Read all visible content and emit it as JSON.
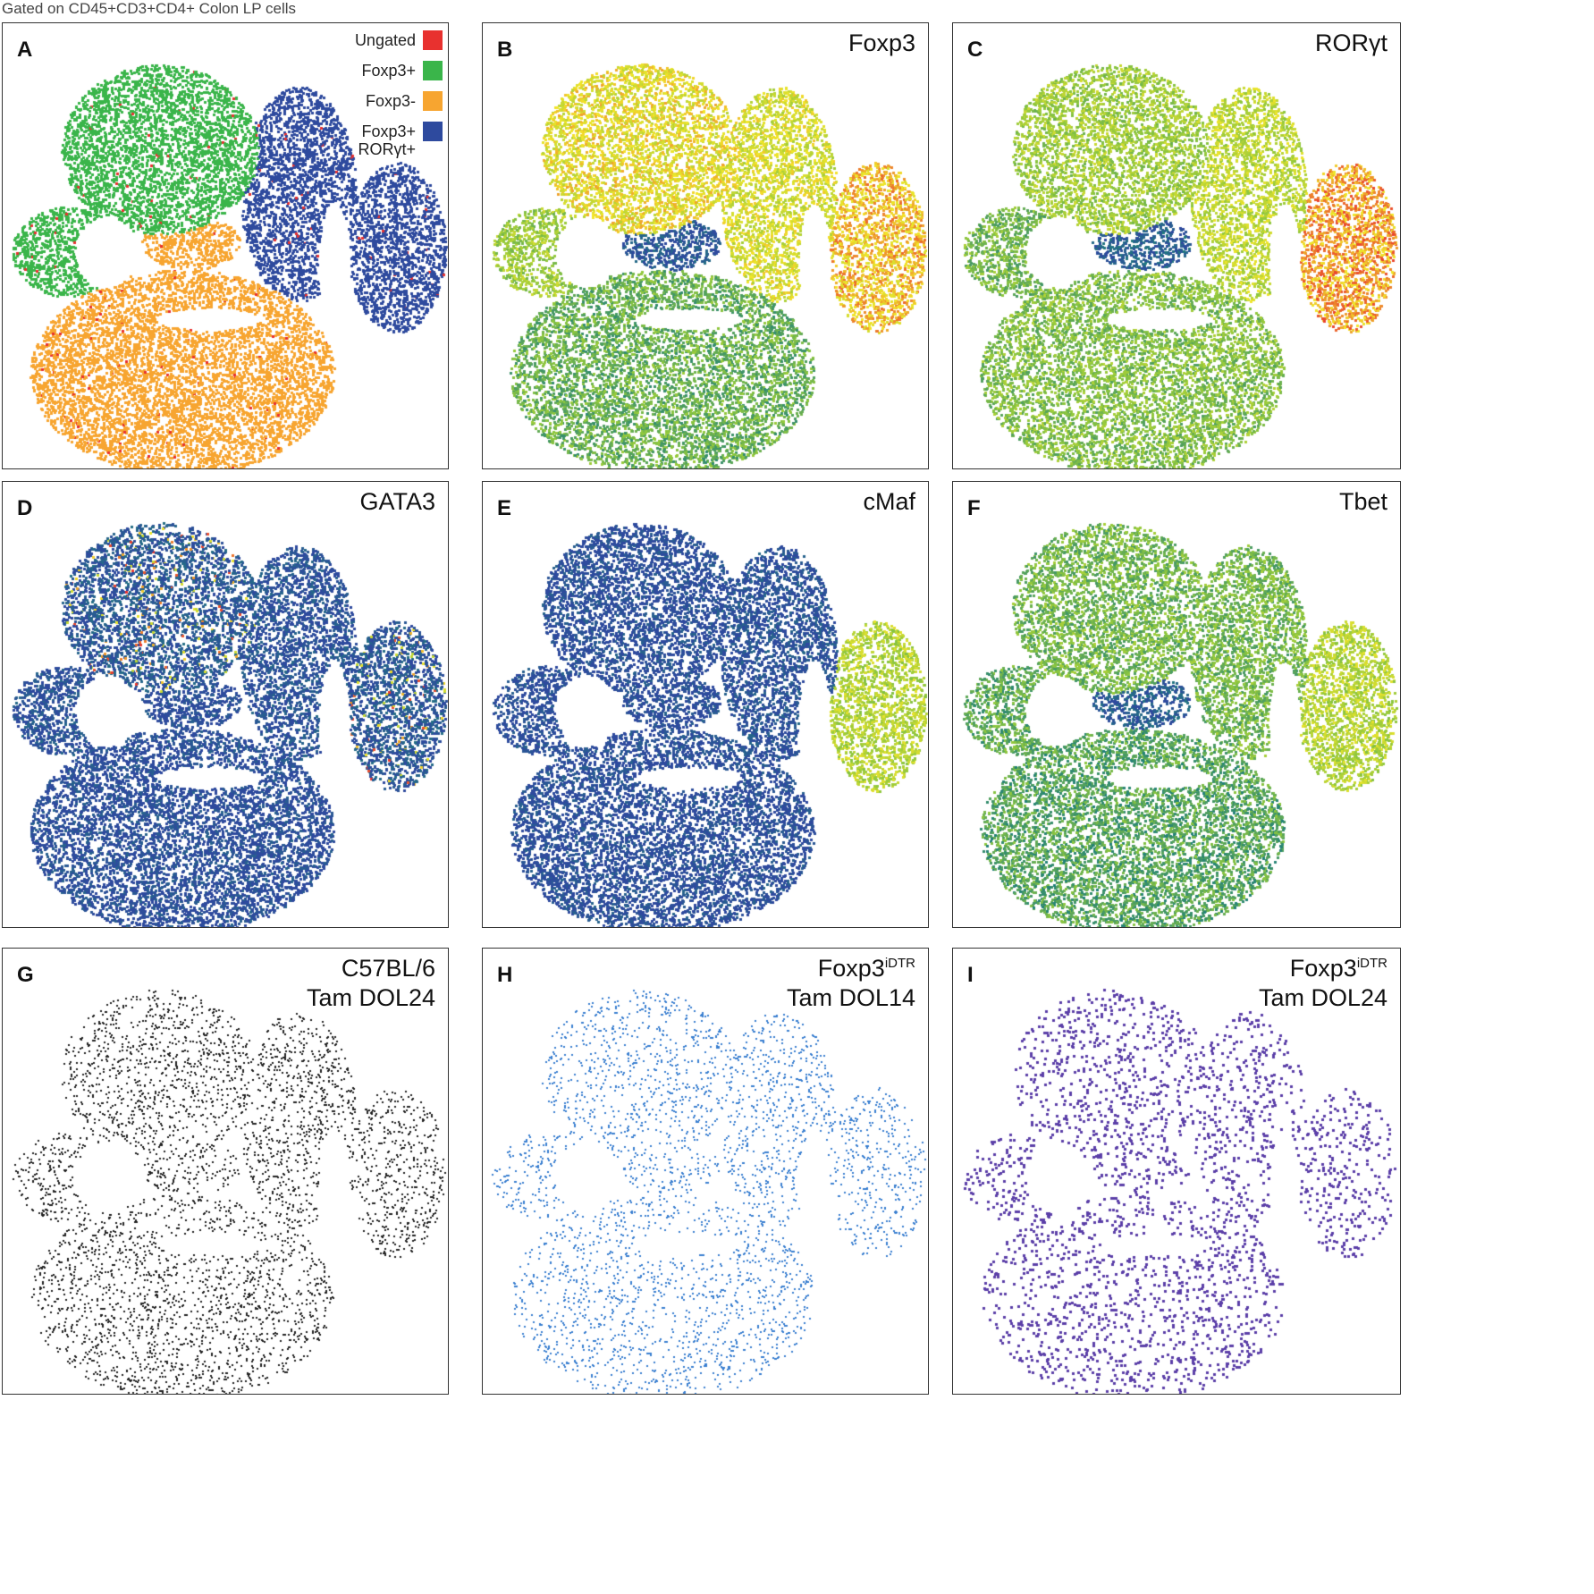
{
  "figure": {
    "gating_title": "Gated on CD45+CD3+CD4+ Colon LP cells"
  },
  "legend": {
    "items": [
      {
        "label": "Ungated",
        "color": "#e8312f"
      },
      {
        "label": "Foxp3+",
        "color": "#3ab54a"
      },
      {
        "label": "Foxp3-",
        "color": "#f7a530"
      },
      {
        "label_line1": "Foxp3+",
        "label_line2": "RORγt+",
        "color": "#2e4a9e"
      }
    ]
  },
  "panels": {
    "A": {
      "letter": "A"
    },
    "B": {
      "letter": "B",
      "label": "Foxp3"
    },
    "C": {
      "letter": "C",
      "label": "RORγt"
    },
    "D": {
      "letter": "D",
      "label": "GATA3"
    },
    "E": {
      "letter": "E",
      "label": "cMaf"
    },
    "F": {
      "letter": "F",
      "label": "Tbet"
    },
    "G": {
      "letter": "G",
      "label_line1": "C57BL/6",
      "label_line2": "Tam DOL24",
      "color": "#222222"
    },
    "H": {
      "letter": "H",
      "label_base": "Foxp3",
      "label_sup": "iDTR",
      "label_line2": "Tam DOL14",
      "color": "#3a7fd0"
    },
    "I": {
      "letter": "I",
      "label_base": "Foxp3",
      "label_sup": "iDTR",
      "label_line2": "Tam DOL24",
      "color": "#5b3fa8"
    }
  },
  "colormap": {
    "low": "#2e4a9e",
    "mid_low": "#1f7f7a",
    "mid": "#8cc63f",
    "mid_high": "#f2e62a",
    "high": "#e8312f"
  }
}
